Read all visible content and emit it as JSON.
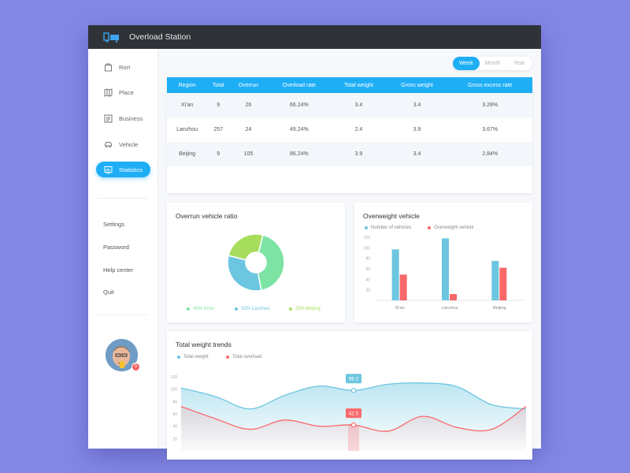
{
  "app": {
    "title": "Overload Station"
  },
  "sidebar": {
    "items": [
      {
        "label": "Rort",
        "icon": "bag-icon"
      },
      {
        "label": "Place",
        "icon": "map-icon"
      },
      {
        "label": "Business",
        "icon": "document-icon"
      },
      {
        "label": "Vehicle",
        "icon": "car-icon"
      },
      {
        "label": "Statistics",
        "icon": "chart-icon",
        "active": true
      }
    ],
    "secondary": [
      "Settings",
      "Password",
      "Help center",
      "Quit"
    ],
    "avatar_badge": "5"
  },
  "period": {
    "options": [
      "Week",
      "Month",
      "Year"
    ],
    "selected": "Week"
  },
  "table": {
    "headers": [
      "Region",
      "Total",
      "Overrun",
      "Overload rate",
      "Total weight",
      "Gross weight",
      "Gross excess rate"
    ],
    "rows": [
      [
        "Xi'an",
        "9",
        "26",
        "66.24%",
        "3.4",
        "3.4",
        "3.28%"
      ],
      [
        "Lanzhou",
        "257",
        "24",
        "49.24%",
        "2.4",
        "3.9",
        "3.67%"
      ],
      [
        "Beijing",
        "9",
        "105",
        "86.24%",
        "3.9",
        "3.4",
        "2.84%"
      ]
    ]
  },
  "colors": {
    "accent": "#1eaef5",
    "green": "#7de3a4",
    "blue": "#6cc6e0",
    "lime": "#a6dd5c",
    "red": "#f9686a"
  },
  "chart_data": [
    {
      "type": "pie",
      "title": "Overrun vehicle ratio",
      "slices": [
        {
          "label": "43% Xi'an",
          "value": 43,
          "color": "#7de3a4"
        },
        {
          "label": "32% Lanzhou",
          "value": 32,
          "color": "#6cc6e0"
        },
        {
          "label": "25% Beijing",
          "value": 25,
          "color": "#a6dd5c"
        }
      ]
    },
    {
      "type": "bar",
      "title": "Overweight vehicle",
      "categories": [
        "Xi'an",
        "Lanzhou",
        "Beijing"
      ],
      "series": [
        {
          "name": "Number of vehicles",
          "values": [
            97,
            118,
            75
          ],
          "color": "#6cc6e0"
        },
        {
          "name": "Overweight vehicle",
          "values": [
            49,
            12,
            62
          ],
          "color": "#f9686a"
        }
      ],
      "yticks": [
        "20",
        "40",
        "60",
        "80",
        "100",
        "120"
      ],
      "ylim": [
        0,
        120
      ]
    },
    {
      "type": "area",
      "title": "Total weight trends",
      "series": [
        {
          "name": "Total weight",
          "color": "#6cc6e0",
          "values": [
            102,
            88,
            68,
            90,
            105,
            98,
            108,
            110,
            104,
            75,
            68
          ]
        },
        {
          "name": "Total overload",
          "color": "#f9686a",
          "values": [
            72,
            52,
            35,
            50,
            40,
            42,
            32,
            56,
            38,
            35,
            72
          ]
        }
      ],
      "yticks": [
        "120",
        "100",
        "80",
        "60",
        "40",
        "20"
      ],
      "ylim": [
        0,
        120
      ],
      "tooltips": [
        "98.2",
        "42.5"
      ]
    }
  ]
}
